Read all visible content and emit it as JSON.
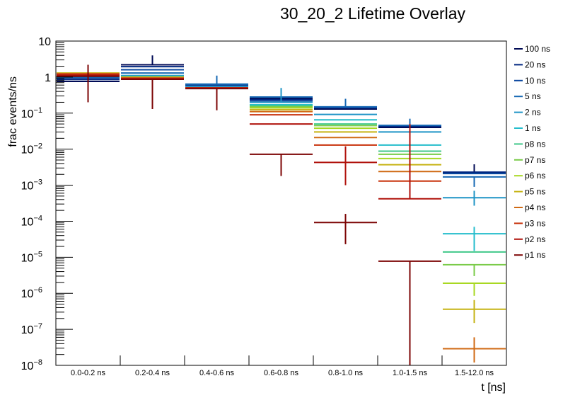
{
  "chart_data": {
    "type": "line",
    "title": "30_20_2 Lifetime Overlay",
    "xlabel": "t [ns]",
    "ylabel": "frac events/ns",
    "yscale": "log",
    "ylim": [
      1e-08,
      10
    ],
    "y_ticks": [
      {
        "base": "10",
        "exp": "",
        "value": 10
      },
      {
        "base": "1",
        "exp": "",
        "value": 1
      },
      {
        "base": "10",
        "exp": "−1",
        "value": 0.1
      },
      {
        "base": "10",
        "exp": "−2",
        "value": 0.01
      },
      {
        "base": "10",
        "exp": "−3",
        "value": 0.001
      },
      {
        "base": "10",
        "exp": "−4",
        "value": 0.0001
      },
      {
        "base": "10",
        "exp": "−5",
        "value": 1e-05
      },
      {
        "base": "10",
        "exp": "−6",
        "value": 1e-06
      },
      {
        "base": "10",
        "exp": "−7",
        "value": 1e-07
      },
      {
        "base": "10",
        "exp": "−8",
        "value": 1e-08
      }
    ],
    "categories": [
      "0.0-0.2 ns",
      "0.2-0.4 ns",
      "0.4-0.6 ns",
      "0.6-0.8 ns",
      "0.8-1.0 ns",
      "1.0-1.5 ns",
      "1.5-12.0 ns"
    ],
    "grid": false,
    "legend_position": "right",
    "series": [
      {
        "name": "100 ns",
        "color": "#000a55",
        "values": [
          0.76,
          2.2,
          0.6,
          0.26,
          0.13,
          0.04,
          0.0022
        ],
        "err_up": [
          null,
          4.0,
          null,
          null,
          null,
          null,
          0.0038
        ],
        "err_dn": [
          null,
          null,
          null,
          null,
          null,
          null,
          null
        ]
      },
      {
        "name": "20 ns",
        "color": "#00257f",
        "values": [
          0.86,
          1.95,
          0.6,
          0.24,
          0.14,
          0.043,
          0.0023
        ],
        "err_up": [
          null,
          null,
          null,
          null,
          null,
          null,
          null
        ],
        "err_dn": [
          null,
          null,
          null,
          null,
          null,
          null,
          null
        ]
      },
      {
        "name": "10 ns",
        "color": "#0a479f",
        "values": [
          0.95,
          1.6,
          0.62,
          0.22,
          0.145,
          0.045,
          0.0021
        ],
        "err_up": [
          null,
          null,
          null,
          null,
          null,
          null,
          null
        ],
        "err_dn": [
          null,
          null,
          null,
          null,
          null,
          null,
          null
        ]
      },
      {
        "name": "5 ns",
        "color": "#1769b4",
        "values": [
          1.0,
          1.3,
          0.64,
          0.28,
          0.15,
          0.046,
          0.0017
        ],
        "err_up": [
          null,
          null,
          1.1,
          null,
          0.25,
          0.07,
          null
        ],
        "err_dn": [
          null,
          null,
          null,
          null,
          null,
          null,
          0.0009
        ]
      },
      {
        "name": "2 ns",
        "color": "#1f94c6",
        "values": [
          1.05,
          1.1,
          0.55,
          0.2,
          0.092,
          0.03,
          0.00045
        ],
        "err_up": [
          null,
          null,
          null,
          0.5,
          null,
          null,
          0.0007
        ],
        "err_dn": [
          null,
          null,
          null,
          null,
          null,
          null,
          0.00027
        ]
      },
      {
        "name": "1 ns",
        "color": "#24bdcc",
        "values": [
          1.1,
          1.05,
          0.5,
          0.17,
          0.065,
          0.013,
          4.5e-05
        ],
        "err_up": [
          null,
          null,
          null,
          null,
          null,
          null,
          7e-05
        ],
        "err_dn": [
          null,
          null,
          null,
          null,
          null,
          null,
          1.5e-05
        ]
      },
      {
        "name": "p8 ns",
        "color": "#41c88a",
        "values": [
          1.15,
          1.0,
          0.5,
          0.16,
          0.05,
          0.0088,
          1.4e-05
        ],
        "err_up": [
          null,
          null,
          null,
          null,
          null,
          null,
          null
        ],
        "err_dn": [
          null,
          null,
          null,
          null,
          null,
          null,
          null
        ]
      },
      {
        "name": "p7 ns",
        "color": "#7acb48",
        "values": [
          1.2,
          1.0,
          0.5,
          0.15,
          0.045,
          0.0072,
          6.2e-06
        ],
        "err_up": [
          null,
          null,
          null,
          null,
          null,
          null,
          null
        ],
        "err_dn": [
          null,
          null,
          null,
          null,
          null,
          null,
          3e-06
        ]
      },
      {
        "name": "p6 ns",
        "color": "#a8d822",
        "values": [
          1.25,
          1.0,
          0.5,
          0.14,
          0.038,
          0.0055,
          1.9e-06
        ],
        "err_up": [
          null,
          null,
          null,
          null,
          null,
          null,
          null
        ],
        "err_dn": [
          null,
          null,
          null,
          null,
          null,
          null,
          8.5e-07
        ]
      },
      {
        "name": "p5 ns",
        "color": "#c6b314",
        "values": [
          1.3,
          1.0,
          0.5,
          0.125,
          0.03,
          0.0037,
          3.6e-07
        ],
        "err_up": [
          null,
          null,
          null,
          null,
          null,
          null,
          6.5e-07
        ],
        "err_dn": [
          null,
          null,
          null,
          null,
          null,
          null,
          1.5e-07
        ]
      },
      {
        "name": "p4 ns",
        "color": "#d06a14",
        "values": [
          1.25,
          0.95,
          0.5,
          0.11,
          0.021,
          0.0024,
          2.9e-08
        ],
        "err_up": [
          null,
          null,
          null,
          null,
          null,
          null,
          6e-08
        ],
        "err_dn": [
          null,
          null,
          null,
          null,
          null,
          null,
          1.2e-08
        ]
      },
      {
        "name": "p3 ns",
        "color": "#c8320c",
        "values": [
          1.2,
          0.92,
          0.5,
          0.09,
          0.013,
          0.0013,
          null
        ],
        "err_up": [
          null,
          null,
          null,
          null,
          null,
          null,
          null
        ],
        "err_dn": [
          null,
          null,
          null,
          null,
          null,
          null,
          null
        ]
      },
      {
        "name": "p2 ns",
        "color": "#b0120c",
        "values": [
          1.12,
          0.9,
          0.5,
          0.05,
          0.0043,
          0.00042,
          null
        ],
        "err_up": [
          null,
          null,
          null,
          null,
          0.012,
          0.05,
          null
        ],
        "err_dn": [
          null,
          null,
          null,
          null,
          0.001,
          null,
          null
        ]
      },
      {
        "name": "p1 ns",
        "color": "#7d0505",
        "values": [
          1.05,
          0.87,
          0.48,
          0.0072,
          9.2e-05,
          7.8e-06,
          null
        ],
        "err_up": [
          2.2,
          null,
          null,
          null,
          0.00016,
          null,
          null
        ],
        "err_dn": [
          0.2,
          0.13,
          0.12,
          0.0018,
          2.3e-05,
          1e-08,
          null
        ]
      }
    ]
  }
}
